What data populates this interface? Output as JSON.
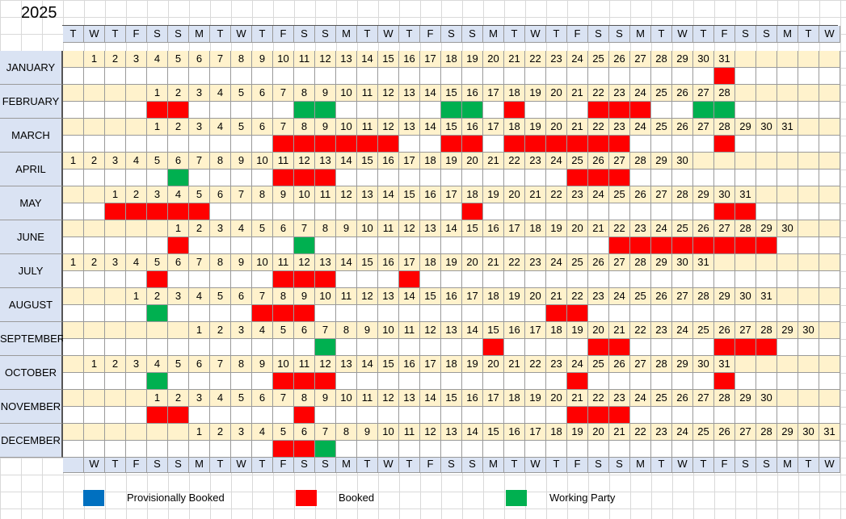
{
  "year": "2025",
  "weekday_labels": [
    "M",
    "T",
    "W",
    "T",
    "F",
    "S",
    "S"
  ],
  "columns": 37,
  "header_top_start": 1,
  "header_bottom_start": 2,
  "colors": {
    "header_bg": "#dae3f3",
    "day_row_bg": "#fff2cc",
    "provisional": "#0070c0",
    "booked": "#ff0000",
    "working_party": "#00b050"
  },
  "months": [
    {
      "name": "JANUARY",
      "start_col": 1,
      "days": 31,
      "booked": [
        31
      ],
      "working": []
    },
    {
      "name": "FEBRUARY",
      "start_col": 4,
      "days": 28,
      "booked": [
        1,
        2,
        18,
        22,
        23,
        24
      ],
      "working": [
        8,
        9,
        15,
        16,
        27,
        28
      ]
    },
    {
      "name": "MARCH",
      "start_col": 4,
      "days": 31,
      "booked": [
        7,
        8,
        9,
        10,
        11,
        12,
        15,
        16,
        18,
        19,
        20,
        21,
        22,
        23,
        28
      ],
      "working": []
    },
    {
      "name": "APRIL",
      "start_col": 0,
      "days": 30,
      "booked": [
        11,
        12,
        13,
        25,
        26,
        27
      ],
      "working": [
        6
      ]
    },
    {
      "name": "MAY",
      "start_col": 2,
      "days": 31,
      "booked": [
        1,
        2,
        3,
        4,
        5,
        18,
        30,
        31
      ],
      "working": []
    },
    {
      "name": "JUNE",
      "start_col": 5,
      "days": 30,
      "booked": [
        1,
        22,
        23,
        24,
        25,
        26,
        27,
        28,
        29
      ],
      "working": [
        7
      ]
    },
    {
      "name": "JULY",
      "start_col": 0,
      "days": 31,
      "booked": [
        5,
        11,
        12,
        13,
        17
      ],
      "working": []
    },
    {
      "name": "AUGUST",
      "start_col": 3,
      "days": 31,
      "booked": [
        7,
        8,
        9,
        21,
        22
      ],
      "working": [
        2
      ]
    },
    {
      "name": "SEPTEMBER",
      "start_col": 6,
      "days": 30,
      "booked": [
        15,
        20,
        21,
        26,
        27,
        28
      ],
      "working": [
        7
      ]
    },
    {
      "name": "OCTOBER",
      "start_col": 1,
      "days": 31,
      "booked": [
        10,
        11,
        12,
        24,
        31
      ],
      "working": [
        4
      ]
    },
    {
      "name": "NOVEMBER",
      "start_col": 4,
      "days": 30,
      "booked": [
        1,
        2,
        8,
        21,
        22,
        23
      ],
      "working": []
    },
    {
      "name": "DECEMBER",
      "start_col": 6,
      "days": 31,
      "booked": [
        5,
        6
      ],
      "working": [
        7
      ]
    }
  ],
  "legend": {
    "provisional": "Provisionally Booked",
    "booked": "Booked",
    "working_party": "Working Party"
  }
}
